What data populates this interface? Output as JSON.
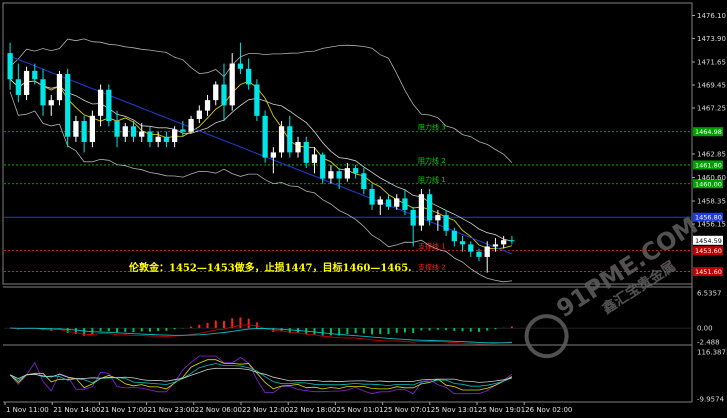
{
  "price_axis": {
    "labels": [
      "1476.10",
      "1473.90",
      "1471.65",
      "1469.45",
      "1467.25",
      "1462.85",
      "1460.60",
      "1458.35",
      "1456.15",
      "1454.59"
    ],
    "values": [
      1476.1,
      1473.9,
      1471.65,
      1469.45,
      1467.25,
      1462.85,
      1460.6,
      1458.35,
      1456.15,
      1454.59
    ]
  },
  "levels": [
    {
      "name": "resistance-3",
      "label": "阻力线 3",
      "price": 1464.98,
      "badge": "1464.98",
      "color": "#00d000",
      "badge_bg": "#00a000",
      "badge_fg": "#ffffff"
    },
    {
      "name": "resistance-2",
      "label": "阻力线 2",
      "price": 1461.8,
      "badge": "1461.80",
      "color": "#00d000",
      "badge_bg": "#00a000",
      "badge_fg": "#ffffff"
    },
    {
      "name": "resistance-1",
      "label": "阻力线 1",
      "price": 1460.0,
      "badge": "1460.00",
      "color": "#00d000",
      "badge_bg": "#00a000",
      "badge_fg": "#ffffff"
    },
    {
      "name": "support-1",
      "label": "支撑线 1",
      "price": 1453.6,
      "badge": "1453.60",
      "color": "#ff2020",
      "badge_bg": "#c00000",
      "badge_fg": "#ffffff"
    },
    {
      "name": "support-2",
      "label": "支撑线 2",
      "price": 1451.6,
      "badge": "1451.60",
      "color": "#ff2020",
      "badge_bg": "#c00000",
      "badge_fg": "#ffffff"
    }
  ],
  "blue_line": {
    "price": 1456.8,
    "badge": "1456.80"
  },
  "current_price": {
    "badge": "1454.59"
  },
  "annotation": "伦敦金：1452—1453做多，止损1447，目标1460—1465.",
  "macd_axis": {
    "labels": [
      "6.5357",
      "0.00",
      "-2.488"
    ],
    "values": [
      6.5357,
      0.0,
      -2.488
    ]
  },
  "osc_axis": {
    "labels": [
      "116.3872",
      "-9.9574"
    ],
    "values": [
      116.3872,
      -9.9574
    ]
  },
  "time_axis": {
    "labels": [
      "1 Nov 11:00",
      "21 Nov 14:00",
      "21 Nov 17:00",
      "21 Nov 23:00",
      "22 Nov 06:00",
      "22 Nov 12:00",
      "22 Nov 18:00",
      "25 Nov 01:01",
      "25 Nov 07:01",
      "25 Nov 13:01",
      "25 Nov 19:01",
      "26 Nov 02:00"
    ]
  },
  "watermark": {
    "main": "91PME.COM",
    "sub": "鑫汇宝贵金属"
  },
  "colors": {
    "bull": "#ffffff",
    "bear": "#00e5e5",
    "bollinger": "#b0b0b0",
    "ma_fast": "#d8c800",
    "ma_mid": "#d0d0d0",
    "ma_slow": "#1e3cd8",
    "macd_pos": "#ff2020",
    "macd_neg": "#00c060",
    "macd_line": "#c00000",
    "macd_signal": "#00c0c0",
    "osc_1": "#9020e0",
    "osc_2": "#e0e000",
    "osc_3": "#00c0c0",
    "osc_4": "#d0d0d0"
  },
  "chart_data": {
    "type": "candlestick",
    "symbol_label": "伦敦金",
    "ylim": [
      1450.6,
      1477.2
    ],
    "candles": [
      {
        "o": 1472.5,
        "h": 1473.5,
        "l": 1469.0,
        "c": 1470.0
      },
      {
        "o": 1470.0,
        "h": 1471.5,
        "l": 1467.8,
        "c": 1468.5
      },
      {
        "o": 1468.5,
        "h": 1471.2,
        "l": 1468.0,
        "c": 1470.8
      },
      {
        "o": 1470.8,
        "h": 1471.5,
        "l": 1469.5,
        "c": 1470.0
      },
      {
        "o": 1470.0,
        "h": 1471.0,
        "l": 1466.5,
        "c": 1467.5
      },
      {
        "o": 1467.5,
        "h": 1468.5,
        "l": 1466.5,
        "c": 1468.0
      },
      {
        "o": 1468.0,
        "h": 1470.8,
        "l": 1467.5,
        "c": 1470.5
      },
      {
        "o": 1470.5,
        "h": 1471.0,
        "l": 1463.5,
        "c": 1464.5
      },
      {
        "o": 1464.5,
        "h": 1466.5,
        "l": 1464.0,
        "c": 1466.0
      },
      {
        "o": 1466.0,
        "h": 1466.5,
        "l": 1463.0,
        "c": 1464.0
      },
      {
        "o": 1464.0,
        "h": 1467.0,
        "l": 1463.5,
        "c": 1466.5
      },
      {
        "o": 1466.5,
        "h": 1469.5,
        "l": 1465.5,
        "c": 1469.0
      },
      {
        "o": 1469.0,
        "h": 1469.5,
        "l": 1465.5,
        "c": 1466.0
      },
      {
        "o": 1466.0,
        "h": 1467.0,
        "l": 1463.5,
        "c": 1464.5
      },
      {
        "o": 1464.5,
        "h": 1465.8,
        "l": 1464.0,
        "c": 1465.5
      },
      {
        "o": 1465.5,
        "h": 1466.0,
        "l": 1464.0,
        "c": 1464.5
      },
      {
        "o": 1464.5,
        "h": 1465.8,
        "l": 1464.0,
        "c": 1465.0
      },
      {
        "o": 1465.0,
        "h": 1465.5,
        "l": 1463.5,
        "c": 1464.0
      },
      {
        "o": 1464.0,
        "h": 1465.0,
        "l": 1463.5,
        "c": 1464.5
      },
      {
        "o": 1464.5,
        "h": 1465.0,
        "l": 1463.5,
        "c": 1464.0
      },
      {
        "o": 1464.0,
        "h": 1465.5,
        "l": 1463.5,
        "c": 1465.2
      },
      {
        "o": 1465.2,
        "h": 1466.0,
        "l": 1464.5,
        "c": 1465.0
      },
      {
        "o": 1465.0,
        "h": 1466.5,
        "l": 1464.8,
        "c": 1466.2
      },
      {
        "o": 1466.2,
        "h": 1467.5,
        "l": 1465.8,
        "c": 1467.0
      },
      {
        "o": 1467.0,
        "h": 1468.5,
        "l": 1466.5,
        "c": 1468.0
      },
      {
        "o": 1468.0,
        "h": 1469.8,
        "l": 1467.5,
        "c": 1469.5
      },
      {
        "o": 1469.5,
        "h": 1471.5,
        "l": 1466.0,
        "c": 1467.5
      },
      {
        "o": 1467.5,
        "h": 1472.5,
        "l": 1467.0,
        "c": 1471.5
      },
      {
        "o": 1471.5,
        "h": 1473.5,
        "l": 1470.5,
        "c": 1471.0
      },
      {
        "o": 1471.0,
        "h": 1472.0,
        "l": 1469.0,
        "c": 1469.5
      },
      {
        "o": 1469.5,
        "h": 1470.0,
        "l": 1466.0,
        "c": 1466.5
      },
      {
        "o": 1466.5,
        "h": 1467.0,
        "l": 1462.0,
        "c": 1462.5
      },
      {
        "o": 1462.5,
        "h": 1463.5,
        "l": 1461.0,
        "c": 1463.0
      },
      {
        "o": 1463.0,
        "h": 1466.0,
        "l": 1462.5,
        "c": 1465.5
      },
      {
        "o": 1465.5,
        "h": 1466.5,
        "l": 1462.5,
        "c": 1463.0
      },
      {
        "o": 1463.0,
        "h": 1464.5,
        "l": 1462.5,
        "c": 1464.0
      },
      {
        "o": 1464.0,
        "h": 1464.5,
        "l": 1461.5,
        "c": 1462.0
      },
      {
        "o": 1462.0,
        "h": 1463.5,
        "l": 1461.0,
        "c": 1462.8
      },
      {
        "o": 1462.8,
        "h": 1463.0,
        "l": 1460.0,
        "c": 1460.5
      },
      {
        "o": 1460.5,
        "h": 1461.8,
        "l": 1460.0,
        "c": 1461.2
      },
      {
        "o": 1461.2,
        "h": 1461.5,
        "l": 1459.5,
        "c": 1460.5
      },
      {
        "o": 1460.5,
        "h": 1462.0,
        "l": 1460.2,
        "c": 1461.5
      },
      {
        "o": 1461.5,
        "h": 1461.8,
        "l": 1460.5,
        "c": 1461.0
      },
      {
        "o": 1461.0,
        "h": 1461.5,
        "l": 1459.0,
        "c": 1459.5
      },
      {
        "o": 1459.5,
        "h": 1460.0,
        "l": 1457.5,
        "c": 1458.0
      },
      {
        "o": 1458.0,
        "h": 1458.8,
        "l": 1457.0,
        "c": 1458.5
      },
      {
        "o": 1458.5,
        "h": 1459.0,
        "l": 1457.5,
        "c": 1457.8
      },
      {
        "o": 1457.8,
        "h": 1459.0,
        "l": 1457.5,
        "c": 1458.6
      },
      {
        "o": 1458.6,
        "h": 1459.5,
        "l": 1457.0,
        "c": 1457.5
      },
      {
        "o": 1457.5,
        "h": 1457.8,
        "l": 1454.0,
        "c": 1456.0
      },
      {
        "o": 1456.0,
        "h": 1459.5,
        "l": 1455.5,
        "c": 1459.0
      },
      {
        "o": 1459.0,
        "h": 1459.5,
        "l": 1456.0,
        "c": 1456.5
      },
      {
        "o": 1456.5,
        "h": 1457.5,
        "l": 1455.5,
        "c": 1457.0
      },
      {
        "o": 1457.0,
        "h": 1457.5,
        "l": 1455.0,
        "c": 1455.5
      },
      {
        "o": 1455.5,
        "h": 1455.8,
        "l": 1454.0,
        "c": 1454.5
      },
      {
        "o": 1454.5,
        "h": 1455.0,
        "l": 1453.5,
        "c": 1454.2
      },
      {
        "o": 1454.2,
        "h": 1454.5,
        "l": 1453.0,
        "c": 1453.5
      },
      {
        "o": 1453.5,
        "h": 1453.8,
        "l": 1452.6,
        "c": 1453.0
      },
      {
        "o": 1453.0,
        "h": 1454.5,
        "l": 1451.5,
        "c": 1454.0
      },
      {
        "o": 1454.0,
        "h": 1454.8,
        "l": 1453.5,
        "c": 1454.2
      },
      {
        "o": 1454.2,
        "h": 1455.0,
        "l": 1453.8,
        "c": 1454.6
      },
      {
        "o": 1454.6,
        "h": 1455.0,
        "l": 1454.2,
        "c": 1454.59
      }
    ]
  }
}
